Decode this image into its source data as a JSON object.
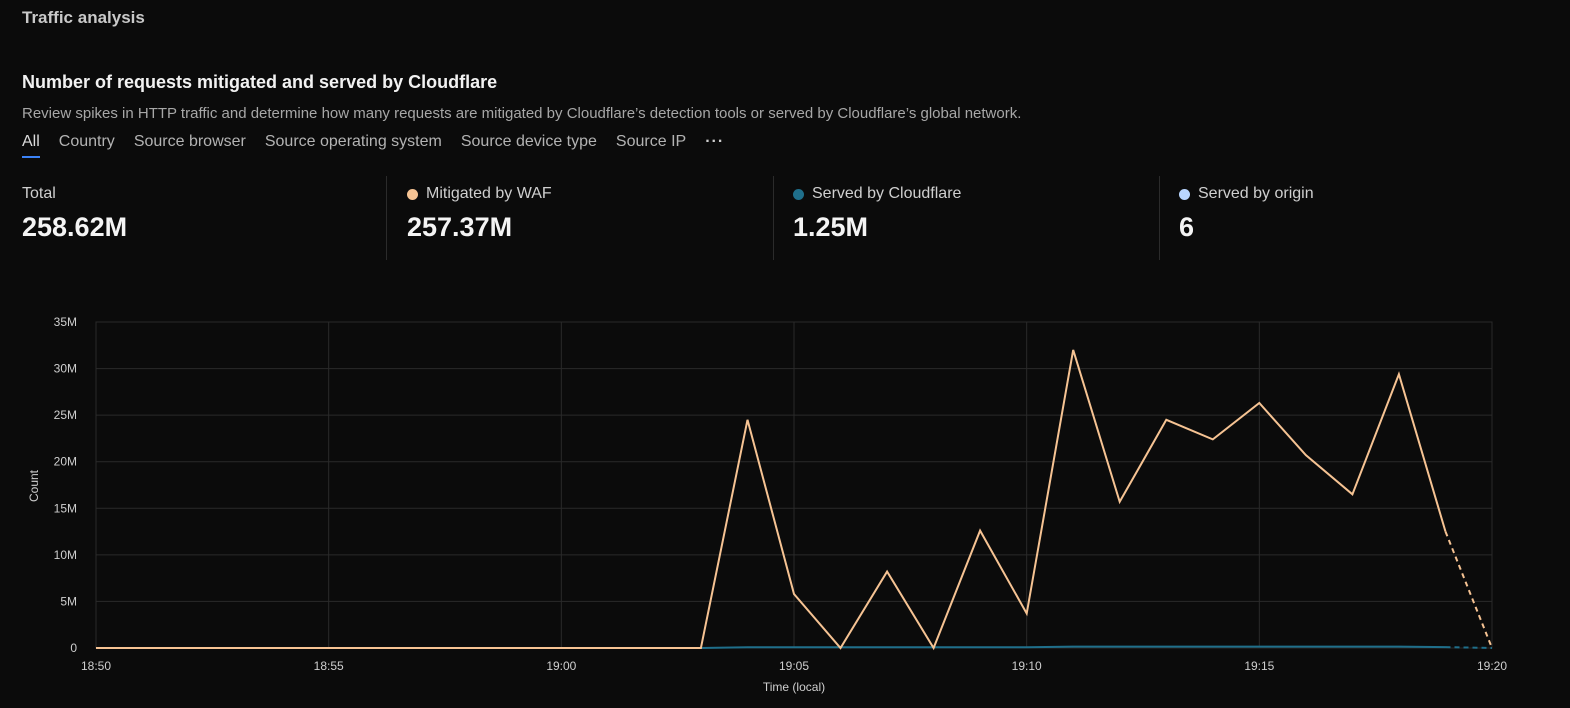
{
  "header": {
    "title": "Traffic analysis"
  },
  "card": {
    "title": "Number of requests mitigated and served by Cloudflare",
    "description": "Review spikes in HTTP traffic and determine how many requests are mitigated by Cloudflare’s detection tools or served by Cloudflare’s global network."
  },
  "tabs": [
    {
      "label": "All",
      "active": true
    },
    {
      "label": "Country"
    },
    {
      "label": "Source browser"
    },
    {
      "label": "Source operating system"
    },
    {
      "label": "Source device type"
    },
    {
      "label": "Source IP"
    }
  ],
  "more_tabs_label": "···",
  "stats": [
    {
      "label": "Total",
      "value": "258.62M"
    },
    {
      "label": "Mitigated by WAF",
      "value": "257.37M",
      "color": "#f6c393"
    },
    {
      "label": "Served by Cloudflare",
      "value": "1.25M",
      "color": "#1f6f8b"
    },
    {
      "label": "Served by origin",
      "value": "6",
      "color": "#b9d6ff"
    }
  ],
  "chart_data": {
    "type": "line",
    "title": "",
    "xlabel": "Time (local)",
    "ylabel": "Count",
    "x_range": [
      "18:50",
      "19:20"
    ],
    "x_ticks": [
      "18:50",
      "18:55",
      "19:00",
      "19:05",
      "19:10",
      "19:15",
      "19:20"
    ],
    "y_ticks": [
      "0",
      "5M",
      "10M",
      "15M",
      "20M",
      "25M",
      "30M",
      "35M"
    ],
    "ylim": [
      0,
      35000000
    ],
    "grid": true,
    "dashed_from": "19:19",
    "series": [
      {
        "name": "Mitigated by WAF",
        "color": "#f6c393",
        "points": [
          [
            "18:50",
            0
          ],
          [
            "19:03",
            0
          ],
          [
            "19:04",
            24500000
          ],
          [
            "19:05",
            5800000
          ],
          [
            "19:06",
            0
          ],
          [
            "19:07",
            8200000
          ],
          [
            "19:08",
            0
          ],
          [
            "19:09",
            12600000
          ],
          [
            "19:10",
            3700000
          ],
          [
            "19:11",
            32000000
          ],
          [
            "19:12",
            15700000
          ],
          [
            "19:13",
            24500000
          ],
          [
            "19:14",
            22400000
          ],
          [
            "19:15",
            26300000
          ],
          [
            "19:16",
            20700000
          ],
          [
            "19:17",
            16500000
          ],
          [
            "19:18",
            29400000
          ],
          [
            "19:19",
            12500000
          ],
          [
            "19:20",
            0
          ]
        ]
      },
      {
        "name": "Served by Cloudflare",
        "color": "#1f6f8b",
        "points": [
          [
            "18:50",
            0
          ],
          [
            "19:03",
            0
          ],
          [
            "19:04",
            80000
          ],
          [
            "19:10",
            80000
          ],
          [
            "19:11",
            150000
          ],
          [
            "19:18",
            150000
          ],
          [
            "19:19",
            100000
          ],
          [
            "19:20",
            0
          ]
        ]
      },
      {
        "name": "Served by origin",
        "color": "#b9d6ff",
        "points": [
          [
            "18:50",
            0
          ],
          [
            "19:20",
            0
          ]
        ]
      }
    ]
  }
}
